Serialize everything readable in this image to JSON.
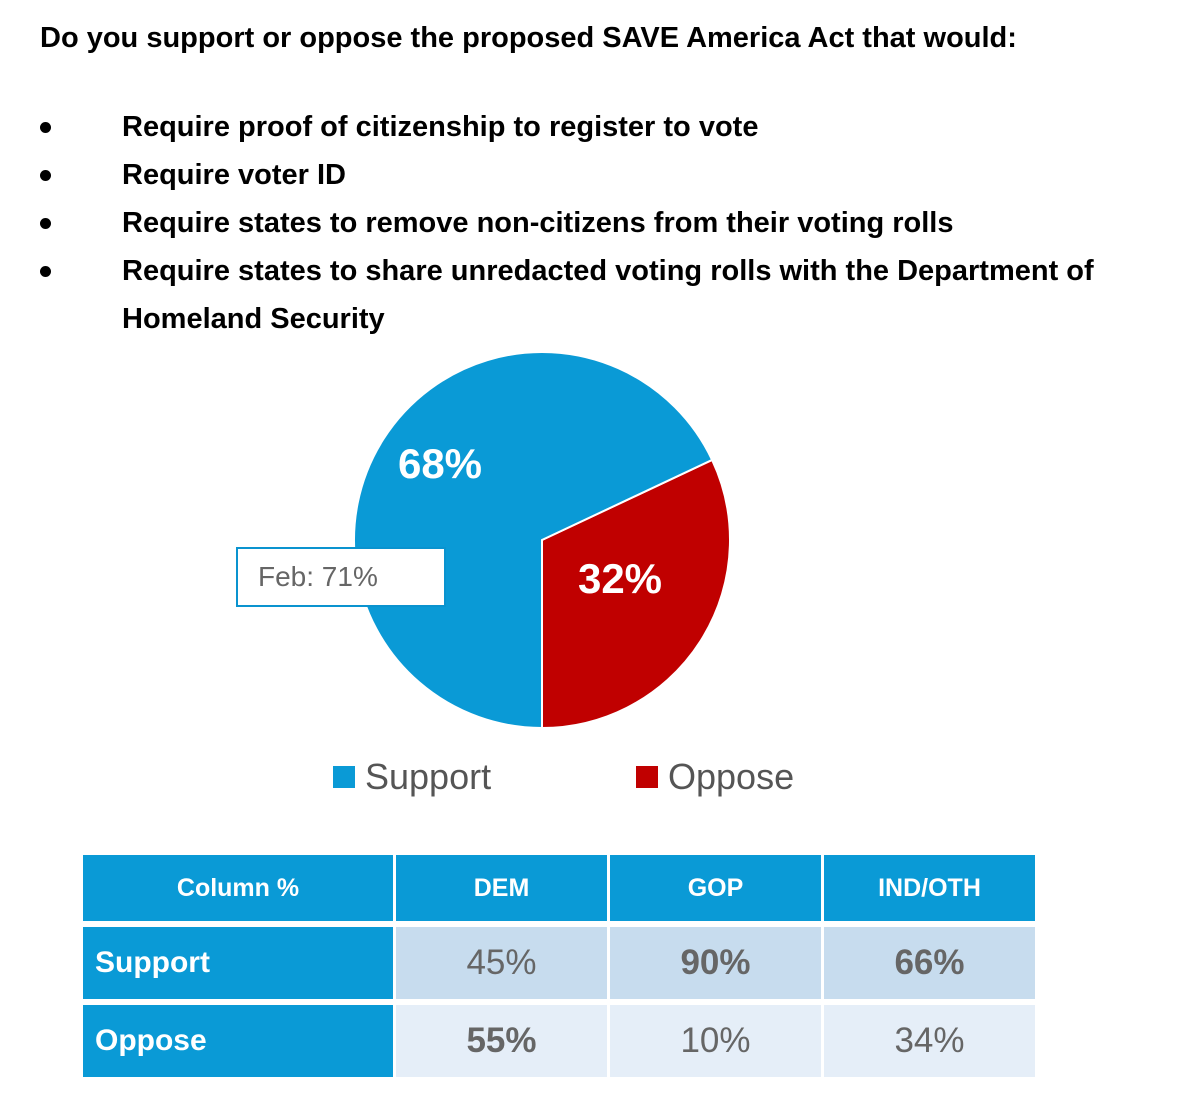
{
  "question": "Do you support or oppose the proposed SAVE America Act that would:",
  "bullets": [
    "Require proof of citizenship to register to vote",
    "Require voter ID",
    "Require states to remove non-citizens from their voting rolls",
    "Require states to share unredacted voting rolls with the Department of Homeland Security"
  ],
  "chart_data": {
    "type": "pie",
    "title": "",
    "categories": [
      "Support",
      "Oppose"
    ],
    "values": [
      68,
      32
    ],
    "labels": [
      "68%",
      "32%"
    ],
    "colors": [
      "#0a9ad6",
      "#c00000"
    ],
    "legend_position": "bottom",
    "annotation": "Feb: 71%"
  },
  "legend": {
    "support": "Support",
    "oppose": "Oppose",
    "support_color": "#0a9ad6",
    "oppose_color": "#c00000"
  },
  "table": {
    "headers": [
      "Column %",
      "DEM",
      "GOP",
      "IND/OTH"
    ],
    "rows": [
      {
        "label": "Support",
        "values": [
          "45%",
          "90%",
          "66%"
        ]
      },
      {
        "label": "Oppose",
        "values": [
          "55%",
          "10%",
          "34%"
        ]
      }
    ]
  }
}
